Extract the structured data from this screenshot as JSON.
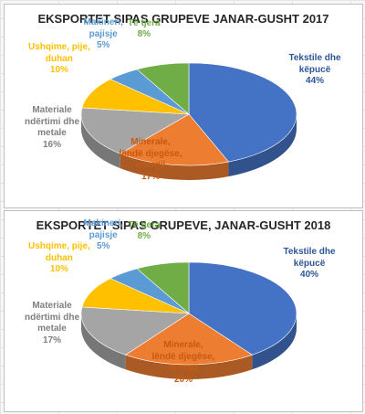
{
  "colors": {
    "tekstile": "#4472c4",
    "minerale": "#ed7d31",
    "materiale": "#a5a5a5",
    "ushqime": "#ffc000",
    "makineri": "#5b9bd5",
    "te_tjera": "#70ad47"
  },
  "chart_data": [
    {
      "type": "pie",
      "title": "EKSPORTET SIPAS GRUPEVE JANAR-GUSHT 2017",
      "slices": [
        {
          "label_lines": [
            "Tekstile dhe",
            "këpucë"
          ],
          "percent_label": "44%",
          "value": 44,
          "color": "#4472c4"
        },
        {
          "label_lines": [
            "Minerale,",
            "lëndë djegëse,",
            "energji"
          ],
          "percent_label": "17%",
          "value": 17,
          "color": "#ed7d31"
        },
        {
          "label_lines": [
            "Materiale",
            "ndërtimi dhe",
            "metale"
          ],
          "percent_label": "16%",
          "value": 16,
          "color": "#a5a5a5"
        },
        {
          "label_lines": [
            "Ushqime, pije,",
            "duhan"
          ],
          "percent_label": "10%",
          "value": 10,
          "color": "#ffc000"
        },
        {
          "label_lines": [
            "Makineri,",
            "pajisje"
          ],
          "percent_label": "5%",
          "value": 5,
          "color": "#5b9bd5"
        },
        {
          "label_lines": [
            "Të tjera"
          ],
          "percent_label": "8%",
          "value": 8,
          "color": "#70ad47"
        }
      ]
    },
    {
      "type": "pie",
      "title": "EKSPORTET SIPAS GRUPEVE, JANAR-GUSHT 2018",
      "slices": [
        {
          "label_lines": [
            "Tekstile dhe",
            "këpucë"
          ],
          "percent_label": "40%",
          "value": 40,
          "color": "#4472c4"
        },
        {
          "label_lines": [
            "Minerale,",
            "lëndë djegëse,",
            "energji"
          ],
          "percent_label": "20%",
          "value": 20,
          "color": "#ed7d31"
        },
        {
          "label_lines": [
            "Materiale",
            "ndërtimi dhe",
            "metale"
          ],
          "percent_label": "17%",
          "value": 17,
          "color": "#a5a5a5"
        },
        {
          "label_lines": [
            "Ushqime, pije,",
            "duhan"
          ],
          "percent_label": "10%",
          "value": 10,
          "color": "#ffc000"
        },
        {
          "label_lines": [
            "Makineri,",
            "pajisje"
          ],
          "percent_label": "5%",
          "value": 5,
          "color": "#5b9bd5"
        },
        {
          "label_lines": [
            "Të tjera"
          ],
          "percent_label": "8%",
          "value": 8,
          "color": "#70ad47"
        }
      ]
    }
  ]
}
